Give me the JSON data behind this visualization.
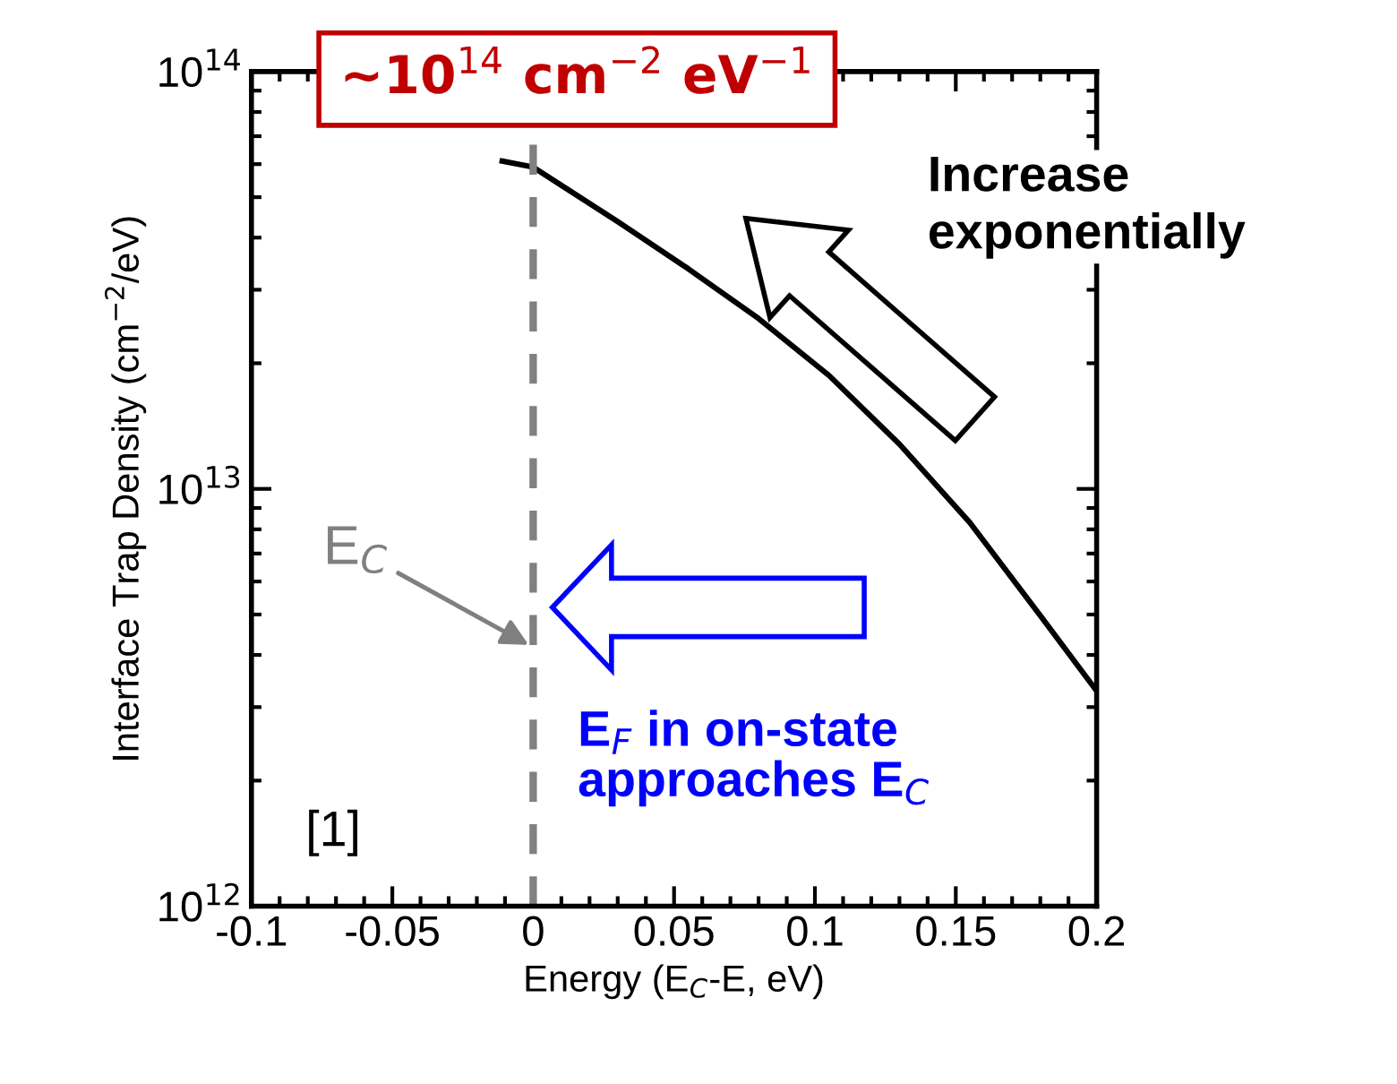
{
  "chart_data": {
    "type": "line",
    "xlabel": "Energy (E$_{C}$-E, eV)",
    "ylabel": "Interface Trap Density (cm$^{−2}$/eV)",
    "x": [
      -0.011,
      0,
      0.03,
      0.055,
      0.08,
      0.105,
      0.13,
      0.155,
      0.18,
      0.2
    ],
    "series": [
      {
        "color": "#000000",
        "values": [
          61000000000000.0,
          59000000000000.0,
          43700000000000.0,
          33700000000000.0,
          25600000000000.0,
          18700000000000.0,
          12800000000000.0,
          8300000000000.0,
          4970000000000.0,
          3280000000000.0
        ]
      }
    ],
    "log": true,
    "xlim": [
      -0.1,
      0.2
    ],
    "xticks": [
      -0.1,
      -0.05,
      0,
      0.05,
      0.1,
      0.15,
      0.2
    ],
    "ylim": [
      1000000000000.0,
      100000000000000.0
    ],
    "yticks": [
      {
        "value": 1000000000000.0,
        "label": "10$^{12}$"
      },
      {
        "value": 10000000000000.0,
        "label": "10$^{13}$"
      },
      {
        "value": 100000000000000.0,
        "label": "10$^{14}$"
      }
    ],
    "grid": false,
    "legend": false,
    "marker": "none",
    "line_style": "solid",
    "ref_lines": [
      {
        "axis": "x",
        "value": 0,
        "label": "E$_{C}$",
        "color": "#808080",
        "line_style": "dashed"
      }
    ],
    "annotations": [
      "∼10$^{14}$ cm$^{−2}$ eV$^{−1}$",
      "Increase\nexponentially",
      "E$_{F}$ in on-state\napproaches E$_{C}$",
      "[1]"
    ]
  }
}
